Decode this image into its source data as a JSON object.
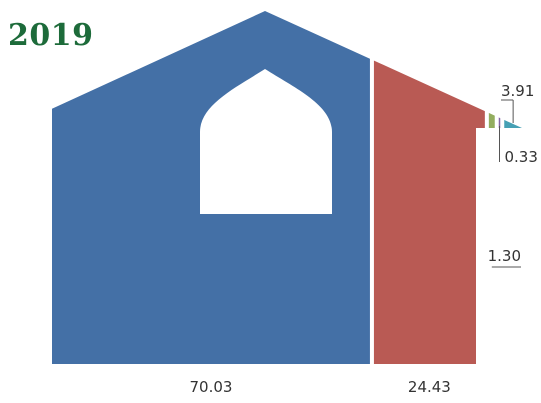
{
  "chart_data": {
    "type": "area",
    "title": "2019",
    "series": [
      {
        "value": 70.03,
        "label": "70.03",
        "color": "#4470a6"
      },
      {
        "value": 24.43,
        "label": "24.43",
        "color": "#b95a54"
      },
      {
        "value": 1.3,
        "label": "1.30",
        "color": "#93ad5f"
      },
      {
        "value": 0.33,
        "label": "0.33",
        "color": "#8466a5"
      },
      {
        "value": 3.91,
        "label": "3.91",
        "color": "#46a0b4"
      }
    ]
  }
}
